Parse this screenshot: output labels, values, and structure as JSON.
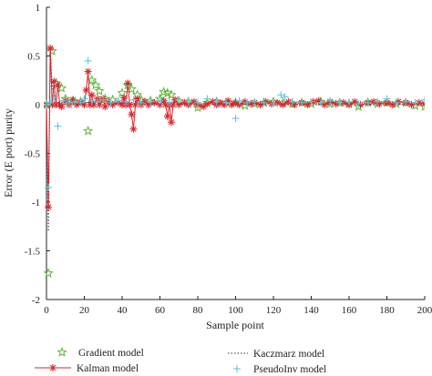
{
  "chart_data": {
    "type": "line",
    "xlabel": "Sample point",
    "ylabel": "Error (E port) purity",
    "xlim": [
      0,
      200
    ],
    "ylim": [
      -2,
      1
    ],
    "xticks": [
      "0",
      "20",
      "40",
      "60",
      "80",
      "100",
      "120",
      "140",
      "160",
      "180",
      "200"
    ],
    "yticks": [
      "1",
      "0.5",
      "0",
      "-0.5",
      "-1",
      "-1.5",
      "-2"
    ],
    "grid": false,
    "legend_position": "bottom",
    "series": [
      {
        "name": "Gradient model",
        "style": "markers",
        "marker": "star",
        "color": "#5cb83a",
        "points": [
          [
            0,
            0.0
          ],
          [
            1,
            -1.73
          ],
          [
            3,
            0.55
          ],
          [
            5,
            0.22
          ],
          [
            8,
            0.17
          ],
          [
            10,
            0.06
          ],
          [
            14,
            0.04
          ],
          [
            18,
            0.03
          ],
          [
            22,
            -0.27
          ],
          [
            24,
            0.25
          ],
          [
            26,
            0.2
          ],
          [
            28,
            0.14
          ],
          [
            31,
            0.06
          ],
          [
            35,
            0.05
          ],
          [
            40,
            0.12
          ],
          [
            43,
            0.2
          ],
          [
            45,
            0.16
          ],
          [
            48,
            0.1
          ],
          [
            50,
            0.05
          ],
          [
            55,
            0.04
          ],
          [
            60,
            0.06
          ],
          [
            62,
            0.13
          ],
          [
            64,
            0.12
          ],
          [
            66,
            0.1
          ],
          [
            70,
            0.04
          ],
          [
            75,
            0.03
          ],
          [
            80,
            -0.03
          ],
          [
            85,
            0.02
          ],
          [
            90,
            0.03
          ],
          [
            95,
            0.02
          ],
          [
            100,
            0.02
          ],
          [
            105,
            -0.01
          ],
          [
            110,
            0.01
          ],
          [
            115,
            0.02
          ],
          [
            120,
            0.03
          ],
          [
            125,
            0.02
          ],
          [
            130,
            0.01
          ],
          [
            135,
            0.02
          ],
          [
            140,
            0.01
          ],
          [
            145,
            0.03
          ],
          [
            150,
            0.01
          ],
          [
            155,
            0.02
          ],
          [
            160,
            0.01
          ],
          [
            165,
            -0.02
          ],
          [
            170,
            0.02
          ],
          [
            175,
            0.01
          ],
          [
            180,
            0.02
          ],
          [
            185,
            0.01
          ],
          [
            190,
            0.02
          ],
          [
            195,
            -0.01
          ],
          [
            200,
            -0.02
          ]
        ]
      },
      {
        "name": "Kaczmarz model",
        "style": "dotted",
        "color": "#333333",
        "points": [
          [
            0,
            0.0
          ],
          [
            1,
            -1.3
          ],
          [
            2,
            0.55
          ],
          [
            3,
            0.2
          ],
          [
            4,
            0.1
          ],
          [
            5,
            0.03
          ],
          [
            7,
            0.02
          ],
          [
            9,
            0.0
          ],
          [
            12,
            0.02
          ],
          [
            16,
            0.0
          ],
          [
            20,
            0.01
          ],
          [
            22,
            0.03
          ],
          [
            25,
            0.0
          ],
          [
            30,
            0.02
          ],
          [
            35,
            0.01
          ],
          [
            40,
            0.02
          ],
          [
            44,
            0.0
          ],
          [
            48,
            0.02
          ],
          [
            52,
            0.0
          ],
          [
            60,
            0.01
          ],
          [
            64,
            0.02
          ],
          [
            68,
            0.0
          ],
          [
            80,
            0.01
          ],
          [
            100,
            0.0
          ],
          [
            120,
            0.01
          ],
          [
            140,
            0.0
          ],
          [
            160,
            0.01
          ],
          [
            180,
            0.0
          ],
          [
            200,
            0.01
          ]
        ]
      },
      {
        "name": "Kalman model",
        "style": "line+markers",
        "marker": "asterisk",
        "color": "#d8262b",
        "points": [
          [
            0,
            0.0
          ],
          [
            1,
            -1.05
          ],
          [
            2,
            0.58
          ],
          [
            3,
            0.0
          ],
          [
            4,
            0.24
          ],
          [
            5,
            0.0
          ],
          [
            6,
            0.2
          ],
          [
            7,
            0.0
          ],
          [
            8,
            -0.02
          ],
          [
            10,
            0.04
          ],
          [
            12,
            0.0
          ],
          [
            14,
            0.05
          ],
          [
            16,
            0.0
          ],
          [
            18,
            0.02
          ],
          [
            20,
            0.0
          ],
          [
            21,
            0.15
          ],
          [
            22,
            0.34
          ],
          [
            23,
            0.0
          ],
          [
            24,
            0.1
          ],
          [
            25,
            0.0
          ],
          [
            27,
            0.06
          ],
          [
            28,
            0.0
          ],
          [
            30,
            0.06
          ],
          [
            31,
            -0.02
          ],
          [
            33,
            0.02
          ],
          [
            35,
            0.0
          ],
          [
            38,
            0.02
          ],
          [
            40,
            0.0
          ],
          [
            41,
            0.07
          ],
          [
            42,
            0.0
          ],
          [
            43,
            0.22
          ],
          [
            44,
            0.0
          ],
          [
            45,
            -0.1
          ],
          [
            46,
            -0.25
          ],
          [
            47,
            0.0
          ],
          [
            48,
            0.06
          ],
          [
            50,
            0.0
          ],
          [
            52,
            0.03
          ],
          [
            54,
            0.0
          ],
          [
            57,
            0.02
          ],
          [
            60,
            0.0
          ],
          [
            62,
            0.04
          ],
          [
            63,
            0.0
          ],
          [
            64,
            -0.12
          ],
          [
            65,
            0.0
          ],
          [
            66,
            -0.18
          ],
          [
            67,
            0.0
          ],
          [
            68,
            0.05
          ],
          [
            70,
            0.0
          ],
          [
            73,
            0.02
          ],
          [
            75,
            0.0
          ],
          [
            78,
            0.03
          ],
          [
            80,
            0.0
          ],
          [
            83,
            -0.02
          ],
          [
            85,
            0.01
          ],
          [
            88,
            0.03
          ],
          [
            90,
            0.0
          ],
          [
            92,
            0.02
          ],
          [
            94,
            0.0
          ],
          [
            96,
            0.04
          ],
          [
            98,
            0.0
          ],
          [
            100,
            0.02
          ],
          [
            102,
            0.0
          ],
          [
            105,
            0.03
          ],
          [
            108,
            0.01
          ],
          [
            110,
            0.02
          ],
          [
            113,
            0.0
          ],
          [
            116,
            0.03
          ],
          [
            119,
            0.01
          ],
          [
            122,
            0.02
          ],
          [
            125,
            0.0
          ],
          [
            128,
            0.03
          ],
          [
            131,
            0.0
          ],
          [
            135,
            0.02
          ],
          [
            138,
            0.0
          ],
          [
            141,
            0.03
          ],
          [
            144,
            0.04
          ],
          [
            147,
            0.0
          ],
          [
            150,
            0.03
          ],
          [
            153,
            0.01
          ],
          [
            157,
            0.02
          ],
          [
            160,
            0.0
          ],
          [
            163,
            0.03
          ],
          [
            166,
            0.0
          ],
          [
            170,
            0.02
          ],
          [
            173,
            0.03
          ],
          [
            176,
            0.01
          ],
          [
            180,
            0.02
          ],
          [
            183,
            0.0
          ],
          [
            186,
            0.03
          ],
          [
            190,
            0.02
          ],
          [
            193,
            0.0
          ],
          [
            197,
            0.02
          ],
          [
            200,
            0.01
          ]
        ]
      },
      {
        "name": "PseudoInv model",
        "style": "markers",
        "marker": "plus",
        "color": "#5fc7de",
        "points": [
          [
            0,
            0.0
          ],
          [
            1,
            -0.85
          ],
          [
            2,
            0.02
          ],
          [
            4,
            0.07
          ],
          [
            6,
            -0.22
          ],
          [
            9,
            0.04
          ],
          [
            12,
            0.02
          ],
          [
            15,
            0.03
          ],
          [
            18,
            0.02
          ],
          [
            20,
            0.06
          ],
          [
            22,
            0.45
          ],
          [
            24,
            0.04
          ],
          [
            27,
            0.03
          ],
          [
            30,
            0.05
          ],
          [
            34,
            0.02
          ],
          [
            38,
            0.04
          ],
          [
            42,
            0.03
          ],
          [
            46,
            0.05
          ],
          [
            50,
            0.02
          ],
          [
            55,
            0.03
          ],
          [
            60,
            0.04
          ],
          [
            65,
            0.02
          ],
          [
            70,
            0.05
          ],
          [
            75,
            0.03
          ],
          [
            80,
            0.02
          ],
          [
            85,
            0.06
          ],
          [
            90,
            0.03
          ],
          [
            95,
            0.02
          ],
          [
            100,
            -0.14
          ],
          [
            102,
            0.04
          ],
          [
            106,
            0.02
          ],
          [
            110,
            0.03
          ],
          [
            115,
            0.02
          ],
          [
            120,
            0.01
          ],
          [
            124,
            0.1
          ],
          [
            126,
            0.08
          ],
          [
            130,
            0.03
          ],
          [
            135,
            0.02
          ],
          [
            140,
            0.03
          ],
          [
            145,
            0.02
          ],
          [
            150,
            0.04
          ],
          [
            155,
            0.02
          ],
          [
            160,
            0.03
          ],
          [
            165,
            0.01
          ],
          [
            170,
            0.02
          ],
          [
            175,
            0.03
          ],
          [
            180,
            0.06
          ],
          [
            185,
            0.02
          ],
          [
            190,
            0.03
          ],
          [
            195,
            0.02
          ],
          [
            200,
            0.05
          ]
        ]
      }
    ]
  }
}
